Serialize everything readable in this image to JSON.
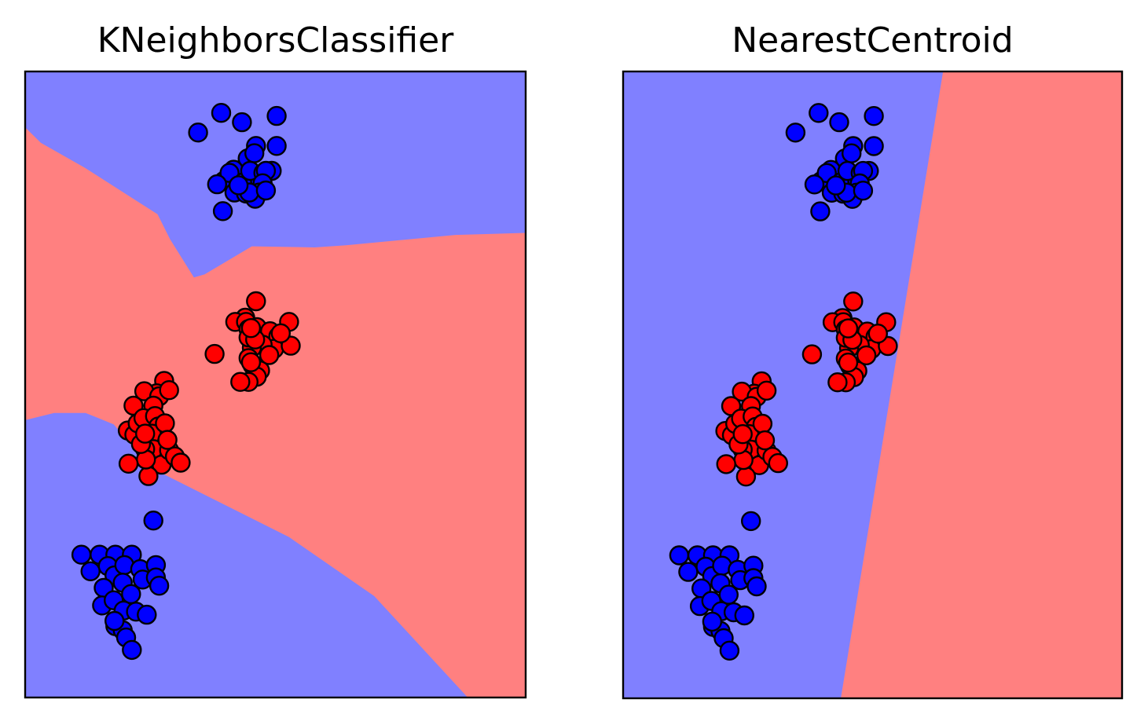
{
  "chart_data": [
    {
      "type": "scatter",
      "title": "KNeighborsClassifier",
      "xlabel": "",
      "ylabel": "",
      "grid": false,
      "axes_ticks": false,
      "xlim": [
        -2.6,
        3.45
      ],
      "ylim": [
        -2.9,
        3.15
      ],
      "colors": {
        "class_a": "#0000ff",
        "class_b": "#ff0000",
        "region_a": "#8080ff",
        "region_b": "#ff8080"
      },
      "regions": [
        {
          "class": "class_b",
          "boundary": [
            [
              -2.6,
              2.61
            ],
            [
              -2.41,
              2.46
            ],
            [
              -1.88,
              2.22
            ],
            [
              -1.0,
              1.77
            ],
            [
              -0.85,
              1.53
            ],
            [
              -0.56,
              1.16
            ],
            [
              -0.47,
              1.18
            ],
            [
              -0.43,
              1.19
            ],
            [
              0.14,
              1.46
            ],
            [
              0.9,
              1.45
            ],
            [
              1.28,
              1.47
            ],
            [
              2.6,
              1.57
            ],
            [
              3.45,
              1.59
            ],
            [
              3.45,
              -2.9
            ],
            [
              2.75,
              -2.9
            ],
            [
              1.62,
              -1.92
            ],
            [
              0.59,
              -1.35
            ],
            [
              -1.08,
              -0.68
            ],
            [
              -1.53,
              -0.26
            ],
            [
              -1.87,
              -0.15
            ],
            [
              -2.25,
              -0.15
            ],
            [
              -2.6,
              -0.22
            ]
          ]
        }
      ],
      "series": [
        {
          "class": "class_a",
          "points": [
            [
              -0.51,
              2.56
            ],
            [
              -0.23,
              2.75
            ],
            [
              0.02,
              2.66
            ],
            [
              0.44,
              2.72
            ],
            [
              0.19,
              2.43
            ],
            [
              0.44,
              2.43
            ],
            [
              0.09,
              2.31
            ],
            [
              0.17,
              2.36
            ],
            [
              -0.08,
              2.2
            ],
            [
              -0.2,
              2.09
            ],
            [
              -0.13,
              2.17
            ],
            [
              0.04,
              2.08
            ],
            [
              0.24,
              2.09
            ],
            [
              0.12,
              2.19
            ],
            [
              0.28,
              2.17
            ],
            [
              0.38,
              2.19
            ],
            [
              0.31,
              2.19
            ],
            [
              0.27,
              2.07
            ],
            [
              -0.07,
              1.98
            ],
            [
              0.07,
              1.97
            ],
            [
              0.23,
              1.98
            ],
            [
              0.18,
              1.92
            ],
            [
              0.11,
              1.98
            ],
            [
              -0.02,
              2.05
            ],
            [
              0.31,
              2.0
            ],
            [
              -0.28,
              2.06
            ],
            [
              -0.21,
              1.8
            ]
          ]
        },
        {
          "class": "class_b",
          "points": [
            [
              0.19,
              0.93
            ],
            [
              0.06,
              0.77
            ],
            [
              -0.06,
              0.73
            ],
            [
              0.07,
              0.73
            ],
            [
              0.2,
              0.68
            ],
            [
              0.1,
              0.66
            ],
            [
              0.26,
              0.52
            ],
            [
              0.36,
              0.64
            ],
            [
              0.46,
              0.59
            ],
            [
              0.41,
              0.47
            ],
            [
              0.27,
              0.51
            ],
            [
              0.14,
              0.48
            ],
            [
              0.1,
              0.38
            ],
            [
              0.15,
              0.31
            ],
            [
              0.24,
              0.26
            ],
            [
              0.2,
              0.2
            ],
            [
              0.1,
              0.15
            ],
            [
              0.0,
              0.15
            ],
            [
              0.61,
              0.5
            ],
            [
              0.59,
              0.73
            ],
            [
              0.49,
              0.62
            ],
            [
              0.1,
              0.58
            ],
            [
              0.35,
              0.41
            ],
            [
              0.18,
              0.56
            ],
            [
              0.13,
              0.67
            ],
            [
              -0.31,
              0.42
            ],
            [
              0.13,
              0.34
            ]
          ]
        },
        {
          "class": "class_c",
          "points": [
            [
              -0.92,
              0.16
            ],
            [
              -1.01,
              0.04
            ],
            [
              -1.16,
              0.06
            ],
            [
              -0.98,
              0.01
            ],
            [
              -0.86,
              0.07
            ],
            [
              -1.05,
              -0.08
            ],
            [
              -1.29,
              -0.08
            ],
            [
              -1.36,
              -0.32
            ],
            [
              -1.28,
              -0.36
            ],
            [
              -1.24,
              -0.25
            ],
            [
              -1.17,
              -0.2
            ],
            [
              -1.03,
              -0.18
            ],
            [
              -0.99,
              -0.28
            ],
            [
              -1.07,
              -0.35
            ],
            [
              -1.05,
              -0.5
            ],
            [
              -0.95,
              -0.65
            ],
            [
              -1.11,
              -0.76
            ],
            [
              -1.15,
              -0.5
            ],
            [
              -1.14,
              -0.6
            ],
            [
              -1.2,
              -0.45
            ],
            [
              -0.86,
              -0.51
            ],
            [
              -0.79,
              -0.57
            ],
            [
              -0.72,
              -0.63
            ],
            [
              -1.35,
              -0.64
            ],
            [
              -1.15,
              -0.35
            ],
            [
              -0.91,
              -0.25
            ],
            [
              -0.88,
              -0.41
            ]
          ]
        },
        {
          "class": "class_d",
          "points": [
            [
              -1.92,
              -1.52
            ],
            [
              -1.7,
              -1.52
            ],
            [
              -1.51,
              -1.52
            ],
            [
              -1.31,
              -1.52
            ],
            [
              -1.6,
              -1.63
            ],
            [
              -1.52,
              -1.72
            ],
            [
              -1.4,
              -1.62
            ],
            [
              -1.21,
              -1.66
            ],
            [
              -1.02,
              -1.62
            ],
            [
              -1.81,
              -1.68
            ],
            [
              -1.65,
              -1.84
            ],
            [
              -1.42,
              -1.79
            ],
            [
              -1.32,
              -1.9
            ],
            [
              -1.18,
              -1.76
            ],
            [
              -1.67,
              -2.01
            ],
            [
              -1.53,
              -1.96
            ],
            [
              -1.41,
              -2.06
            ],
            [
              -1.26,
              -2.07
            ],
            [
              -1.13,
              -2.1
            ],
            [
              -1.51,
              -2.21
            ],
            [
              -1.42,
              -2.25
            ],
            [
              -1.38,
              -2.32
            ],
            [
              -1.52,
              -2.16
            ],
            [
              -1.31,
              -2.44
            ],
            [
              -1.02,
              -1.74
            ],
            [
              -1.05,
              -1.19
            ],
            [
              -0.98,
              -1.82
            ]
          ]
        }
      ],
      "class_of_series": {
        "class_c": "class_b",
        "class_d": "class_a"
      }
    },
    {
      "type": "scatter",
      "title": "NearestCentroid",
      "xlabel": "",
      "ylabel": "",
      "grid": false,
      "axes_ticks": false,
      "xlim": [
        -2.6,
        3.45
      ],
      "ylim": [
        -2.9,
        3.15
      ],
      "colors": {
        "class_a": "#0000ff",
        "class_b": "#ff0000",
        "region_a": "#8080ff",
        "region_b": "#ff8080"
      },
      "regions": [
        {
          "class": "class_b",
          "boundary": [
            [
              1.28,
              3.15
            ],
            [
              3.45,
              3.15
            ],
            [
              3.45,
              -2.9
            ],
            [
              0.04,
              -2.9
            ]
          ]
        }
      ],
      "series": "same_as_first",
      "class_of_series": {
        "class_c": "class_b",
        "class_d": "class_a"
      }
    }
  ]
}
